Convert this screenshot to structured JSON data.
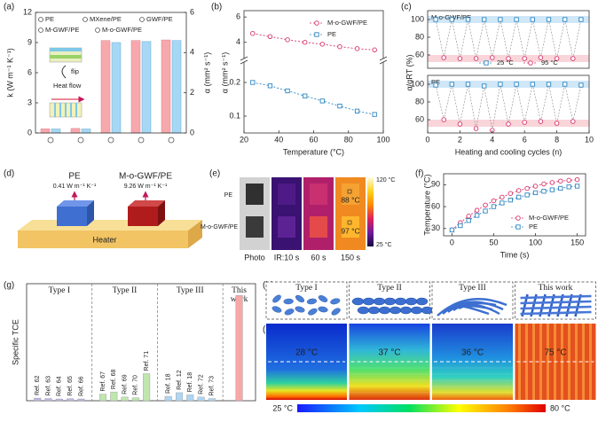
{
  "chart_data": [
    {
      "label": "(a)",
      "type": "bar",
      "categories": [
        "PE",
        "MXene/PE",
        "GWF/PE",
        "M-GWF/PE",
        "M-o-GWF/PE"
      ],
      "ylabel": "k (W m⁻¹ K⁻¹)",
      "y2label": "α (mm² s⁻¹)",
      "inset_texts": [
        "flip",
        "Heat flow"
      ],
      "series": [
        {
          "color": "#f7a8ad",
          "axis": "y",
          "values": [
            0.41,
            0.45,
            9.2,
            9.2,
            9.26
          ]
        },
        {
          "color": "#a6d8f5",
          "axis": "y2",
          "values": [
            0.2,
            0.2,
            4.5,
            4.55,
            4.6
          ]
        }
      ],
      "ylim": [
        0,
        12
      ],
      "yticks": [
        0,
        3,
        6,
        9,
        12
      ],
      "y2lim": [
        0,
        6
      ],
      "y2ticks": [
        0,
        2,
        4,
        6
      ]
    },
    {
      "label": "(b)",
      "type": "line",
      "xlabel": "Temperature (°C)",
      "ylabel": "α (mm² s⁻¹)",
      "x": [
        25,
        35,
        45,
        55,
        65,
        75,
        85,
        95
      ],
      "series": [
        {
          "name": "M-o-GWF/PE",
          "color": "#d6336c",
          "marker": "circle",
          "axis": "upper",
          "values": [
            4.7,
            4.45,
            4.2,
            4.0,
            3.85,
            3.65,
            3.5,
            3.4
          ]
        },
        {
          "name": "PE",
          "color": "#2e86c1",
          "marker": "square",
          "axis": "y",
          "values": [
            0.2,
            0.19,
            0.175,
            0.16,
            0.145,
            0.13,
            0.115,
            0.105
          ]
        }
      ],
      "xlim": [
        20,
        100
      ],
      "xticks": [
        20,
        40,
        60,
        80,
        100
      ],
      "ylim": [
        0.05,
        0.25
      ],
      "yticks": [
        0.1,
        0.2
      ],
      "upper_ylim": [
        3,
        6.5
      ],
      "upper_yticks": [
        4,
        6
      ]
    },
    {
      "label": "(c)",
      "type": "line",
      "xlabel": "Heating and cooling cycles (n)",
      "ylabel": "α/αRT (%)",
      "series": [
        {
          "name": "25 °C",
          "color": "#2e86c1",
          "marker": "square",
          "x": [
            0.5,
            1.5,
            2.5,
            3.5,
            4.5,
            5.5,
            6.5,
            7.5,
            8.5,
            9.5
          ]
        },
        {
          "name": "95 °C",
          "color": "#d6336c",
          "marker": "circle",
          "x": [
            1,
            2,
            3,
            4,
            5,
            6,
            7,
            8,
            9
          ]
        }
      ],
      "subplots": [
        {
          "title": "M-o-GWF/PE",
          "values": [
            [
              100,
              100,
              100,
              100,
              100,
              100,
              100,
              100,
              100,
              100
            ],
            [
              57,
              56,
              56,
              57,
              56,
              56,
              57,
              56,
              56
            ]
          ]
        },
        {
          "title": "PE",
          "values": [
            [
              99,
              100,
              100,
              98,
              100,
              100,
              100,
              100,
              100,
              99
            ],
            [
              60,
              55,
              50,
              48,
              55,
              57,
              58,
              56,
              58
            ]
          ]
        }
      ],
      "bands": [
        {
          "range": [
            96,
            104
          ],
          "color": "#cfe7f7"
        },
        {
          "range": [
            52,
            60
          ],
          "color": "#f9d5da"
        }
      ],
      "xlim": [
        0,
        10
      ],
      "xticks": [
        0,
        2,
        4,
        6,
        8,
        10
      ],
      "ylim": [
        45,
        110
      ],
      "yticks": [
        60,
        80,
        100
      ]
    },
    {
      "label": "(f)",
      "type": "line",
      "xlabel": "Time (s)",
      "ylabel": "Temperature (°C)",
      "x": [
        0,
        10,
        20,
        30,
        40,
        50,
        60,
        70,
        80,
        90,
        100,
        110,
        120,
        130,
        140,
        150
      ],
      "series": [
        {
          "name": "M-o-GWF/PE",
          "color": "#d6336c",
          "marker": "circle",
          "values": [
            28,
            38,
            47,
            55,
            62,
            68,
            73,
            78,
            82,
            85,
            88,
            91,
            93,
            95,
            96,
            97
          ]
        },
        {
          "name": "PE",
          "color": "#2e86c1",
          "marker": "square",
          "values": [
            28,
            34,
            41,
            48,
            54,
            60,
            65,
            69,
            73,
            76,
            79,
            81,
            83,
            85,
            87,
            88
          ]
        }
      ],
      "xlim": [
        -10,
        160
      ],
      "xticks": [
        0,
        50,
        100,
        150
      ],
      "ylim": [
        20,
        105
      ],
      "yticks": [
        30,
        60,
        90
      ]
    },
    {
      "label": "(g)",
      "type": "bar",
      "ylabel": "Specific TCE",
      "ylim": [
        0,
        800
      ],
      "groups": [
        {
          "name": "Type I",
          "color": "#bdb5e6",
          "categories": [
            "Ref. 62",
            "Ref. 63",
            "Ref. 64",
            "Ref. 65",
            "Ref. 66"
          ],
          "values": [
            18,
            15,
            12,
            14,
            12
          ]
        },
        {
          "name": "Type II",
          "color": "#bfe6ae",
          "categories": [
            "Ref. 67",
            "Ref. 68",
            "Ref. 69",
            "Ref. 70",
            "Ref. 71"
          ],
          "values": [
            45,
            60,
            25,
            20,
            185
          ]
        },
        {
          "name": "Type III",
          "color": "#aed6f3",
          "categories": [
            "Ref. 18",
            "Ref. 12",
            "Ref. 18",
            "Ref. 72",
            "Ref. 73"
          ],
          "values": [
            30,
            55,
            40,
            25,
            15
          ]
        },
        {
          "name": "This work",
          "color": "#f6a7a7",
          "categories": [
            null
          ],
          "values": [
            720
          ]
        }
      ]
    }
  ],
  "panel_d": {
    "label": "(d)",
    "heater": "Heater",
    "samples": [
      {
        "name": "PE",
        "k": "0.41 W m⁻¹ K⁻¹"
      },
      {
        "name": "M-o-GWF/PE",
        "k": "9.26 W m⁻¹ K⁻¹"
      }
    ]
  },
  "panel_e": {
    "label": "(e)",
    "row_labels": [
      "PE",
      "M-o-GWF/PE"
    ],
    "column_labels": [
      "Photo",
      "IR:10 s",
      "60 s",
      "150 s"
    ],
    "annotations": [
      "88 °C",
      "97 °C"
    ],
    "colorbar": [
      "120 °C",
      "25 °C"
    ]
  },
  "panel_h": {
    "label": "(h)",
    "titles": [
      "Type I",
      "Type II",
      "Type III",
      "This work"
    ]
  },
  "panel_i": {
    "label": "(i)",
    "temperatures": [
      "28 °C",
      "37 °C",
      "36 °C",
      "75 °C"
    ],
    "colorbar": [
      "25 °C",
      "80 °C"
    ]
  }
}
